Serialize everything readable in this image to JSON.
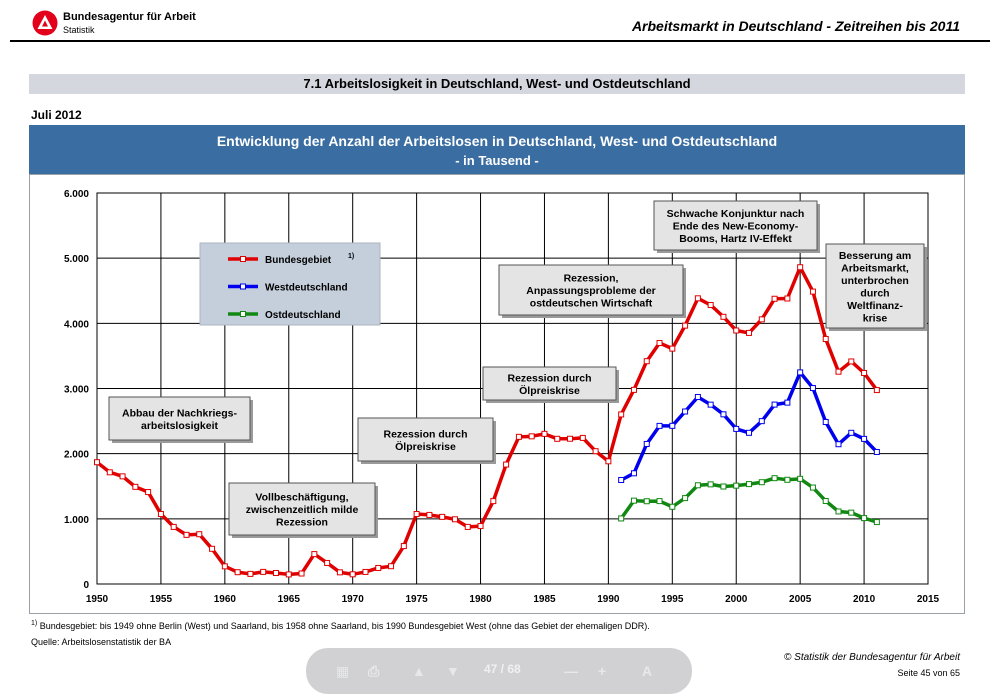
{
  "header": {
    "agency_name": "Bundesagentur für Arbeit",
    "agency_sub": "Statistik",
    "report_title": "Arbeitsmarkt in Deutschland - Zeitreihen bis 2011",
    "section_title": "7.1 Arbeitslosigkeit in Deutschland, West- und Ostdeutschland",
    "date": "Juli 2012"
  },
  "chart_header": {
    "title": "Entwicklung der Anzahl der Arbeitslosen in Deutschland, West- und Ostdeutschland",
    "unit": "-  in Tausend -"
  },
  "colors": {
    "brand_red": "#e2001a",
    "header_blue": "#3a6da1",
    "bundesgebiet": "#e00000",
    "west": "#0000ee",
    "ost": "#118811",
    "legend_bg": "#c5cfdc",
    "annotation_bg": "#e4e4e4"
  },
  "chart_data": {
    "type": "line",
    "title": "Entwicklung der Anzahl der Arbeitslosen in Deutschland, West- und Ostdeutschland",
    "ylabel": "in Tausend",
    "xlim": [
      1950,
      2015
    ],
    "ylim": [
      0,
      6000
    ],
    "x_ticks": [
      1950,
      1955,
      1960,
      1965,
      1970,
      1975,
      1980,
      1985,
      1990,
      1995,
      2000,
      2005,
      2010,
      2015
    ],
    "x_tick_labels": [
      "1950",
      "1955",
      "1960",
      "1965",
      "1970",
      "1975",
      "1980",
      "1985",
      "1990",
      "1995",
      "2000",
      "2005",
      "2010",
      "2015"
    ],
    "y_ticks": [
      0,
      1000,
      2000,
      3000,
      4000,
      5000,
      6000
    ],
    "y_tick_labels": [
      "0",
      "1.000",
      "2.000",
      "3.000",
      "4.000",
      "5.000",
      "6.000"
    ],
    "grid": true,
    "legend_position": "upper-left",
    "series": [
      {
        "name": "Bundesgebiet",
        "footnote": "1)",
        "color_key": "bundesgebiet",
        "x": [
          1950,
          1951,
          1952,
          1953,
          1954,
          1955,
          1956,
          1957,
          1958,
          1959,
          1960,
          1961,
          1962,
          1963,
          1964,
          1965,
          1966,
          1967,
          1968,
          1969,
          1970,
          1971,
          1972,
          1973,
          1974,
          1975,
          1976,
          1977,
          1978,
          1979,
          1980,
          1981,
          1982,
          1983,
          1984,
          1985,
          1986,
          1987,
          1988,
          1989,
          1990,
          1991,
          1992,
          1993,
          1994,
          1995,
          1996,
          1997,
          1998,
          1999,
          2000,
          2001,
          2002,
          2003,
          2004,
          2005,
          2006,
          2007,
          2008,
          2009,
          2010,
          2011
        ],
        "values": [
          1869,
          1714,
          1652,
          1491,
          1411,
          1074,
          876,
          754,
          764,
          540,
          271,
          181,
          155,
          186,
          169,
          147,
          161,
          459,
          323,
          179,
          149,
          185,
          246,
          273,
          582,
          1074,
          1060,
          1030,
          993,
          876,
          889,
          1272,
          1833,
          2258,
          2266,
          2304,
          2228,
          2229,
          2242,
          2038,
          1883,
          2602,
          2979,
          3419,
          3698,
          3612,
          3965,
          4384,
          4281,
          4100,
          3890,
          3853,
          4061,
          4377,
          4381,
          4861,
          4487,
          3760,
          3258,
          3415,
          3238,
          2976
        ]
      },
      {
        "name": "Westdeutschland",
        "color_key": "west",
        "x": [
          1991,
          1992,
          1993,
          1994,
          1995,
          1996,
          1997,
          1998,
          1999,
          2000,
          2001,
          2002,
          2003,
          2004,
          2005,
          2006,
          2007,
          2008,
          2009,
          2010,
          2011
        ],
        "values": [
          1596,
          1699,
          2149,
          2426,
          2427,
          2647,
          2870,
          2752,
          2604,
          2380,
          2320,
          2499,
          2753,
          2783,
          3247,
          3007,
          2486,
          2145,
          2320,
          2227,
          2026
        ]
      },
      {
        "name": "Ostdeutschland",
        "color_key": "ost",
        "x": [
          1991,
          1992,
          1993,
          1994,
          1995,
          1996,
          1997,
          1998,
          1999,
          2000,
          2001,
          2002,
          2003,
          2004,
          2005,
          2006,
          2007,
          2008,
          2009,
          2010,
          2011
        ],
        "values": [
          1006,
          1279,
          1270,
          1272,
          1185,
          1318,
          1515,
          1529,
          1496,
          1509,
          1533,
          1562,
          1624,
          1599,
          1614,
          1480,
          1274,
          1113,
          1095,
          1011,
          950
        ]
      }
    ],
    "annotations": [
      {
        "key": "nachkrieg",
        "lines": [
          "Abbau der Nachkriegs-",
          "arbeitslosigkeit"
        ]
      },
      {
        "key": "vollbeschaeftigung",
        "lines": [
          "Vollbeschäftigung,",
          "zwischenzeitlich milde",
          "Rezession"
        ]
      },
      {
        "key": "oelkrise1",
        "lines": [
          "Rezession durch",
          "Ölpreiskrise"
        ]
      },
      {
        "key": "oelkrise2",
        "lines": [
          "Rezession durch",
          "Ölpreiskrise"
        ]
      },
      {
        "key": "anpassung",
        "lines": [
          "Rezession,",
          "Anpassungsprobleme der",
          "ostdeutschen Wirtschaft"
        ]
      },
      {
        "key": "konjunktur",
        "lines": [
          "Schwache Konjunktur nach",
          "Ende des New-Economy-",
          "Booms, Hartz IV-Effekt"
        ]
      },
      {
        "key": "besserung",
        "lines": [
          "Besserung am",
          "Arbeitsmarkt,",
          "unterbrochen",
          "durch",
          "Weltfinanz-",
          "krise"
        ]
      }
    ]
  },
  "footer": {
    "footnote_marker": "1)",
    "footnote": "Bundesgebiet: bis 1949 ohne Berlin (West) und Saarland, bis 1958 ohne Saarland, bis 1990 Bundesgebiet West (ohne das Gebiet der ehemaligen DDR).",
    "source": "Quelle: Arbeitslosenstatistik der BA",
    "copyright": "© Statistik der Bundesagentur für Arbeit",
    "page": "Seite 45 von 65"
  },
  "viewer_toolbar": {
    "page_display": "47   /  68",
    "icons": [
      "save-icon",
      "print-icon",
      "page-up-icon",
      "page-down-icon",
      "zoom-out-icon",
      "zoom-in-icon",
      "text-select-icon"
    ]
  }
}
